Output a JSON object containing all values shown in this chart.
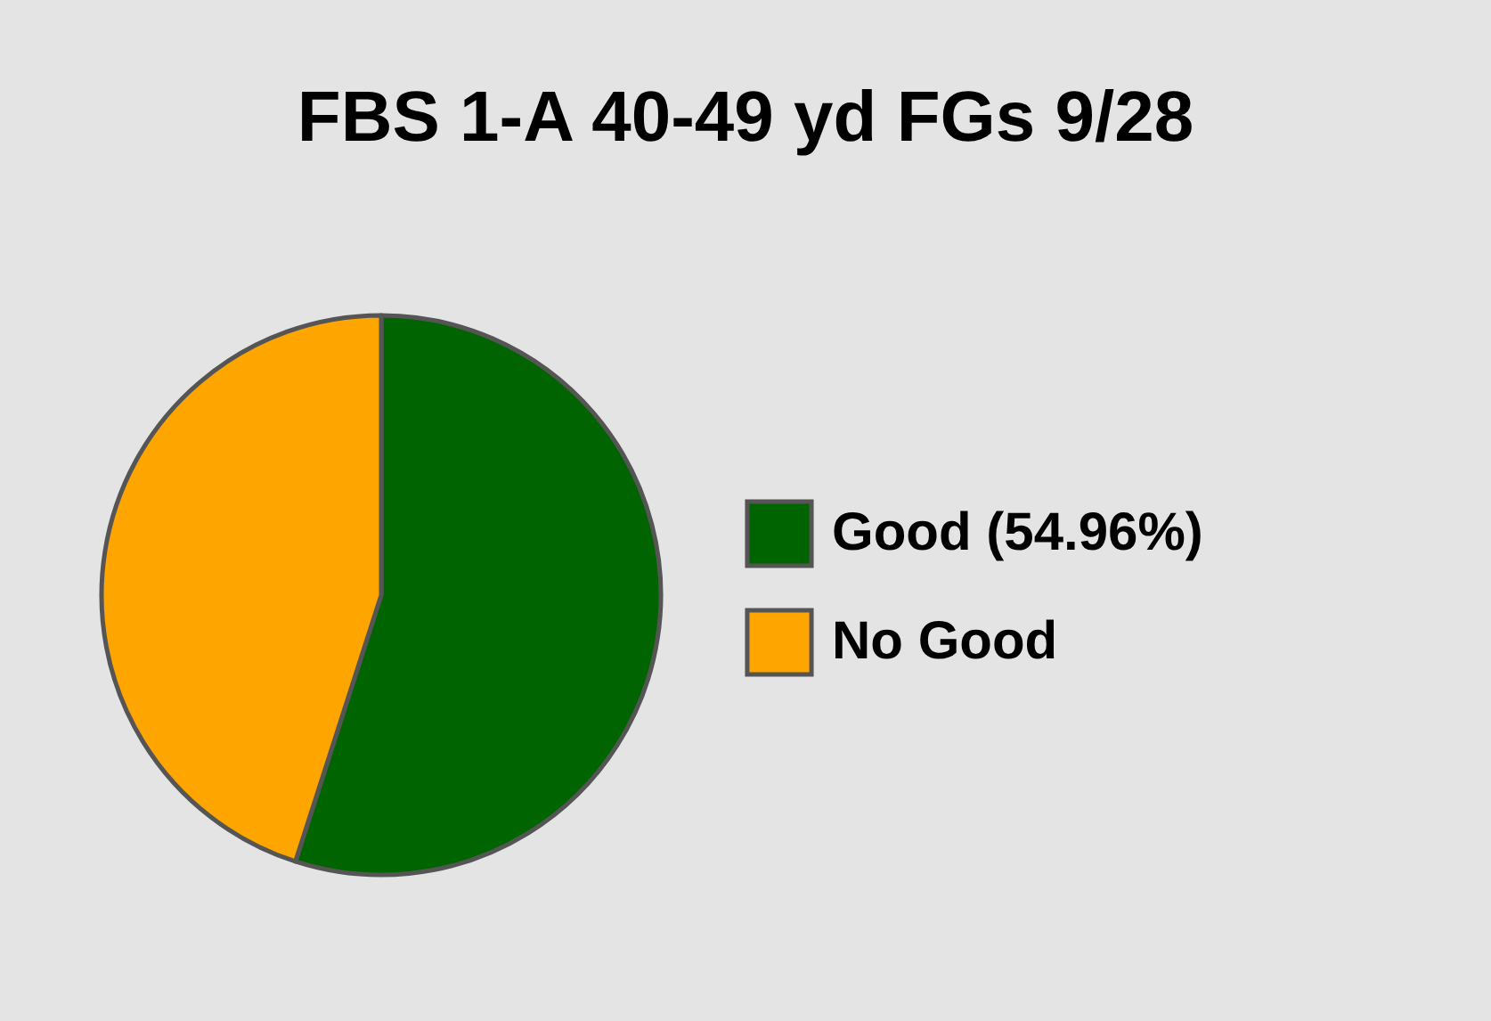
{
  "chart_data": {
    "type": "pie",
    "title": "FBS 1-A 40-49 yd FGs 9/28",
    "categories": [
      "Good (54.96%)",
      "No Good"
    ],
    "values": [
      54.96,
      45.04
    ],
    "colors": [
      "#006400",
      "#ffa500"
    ],
    "legend": "right"
  }
}
